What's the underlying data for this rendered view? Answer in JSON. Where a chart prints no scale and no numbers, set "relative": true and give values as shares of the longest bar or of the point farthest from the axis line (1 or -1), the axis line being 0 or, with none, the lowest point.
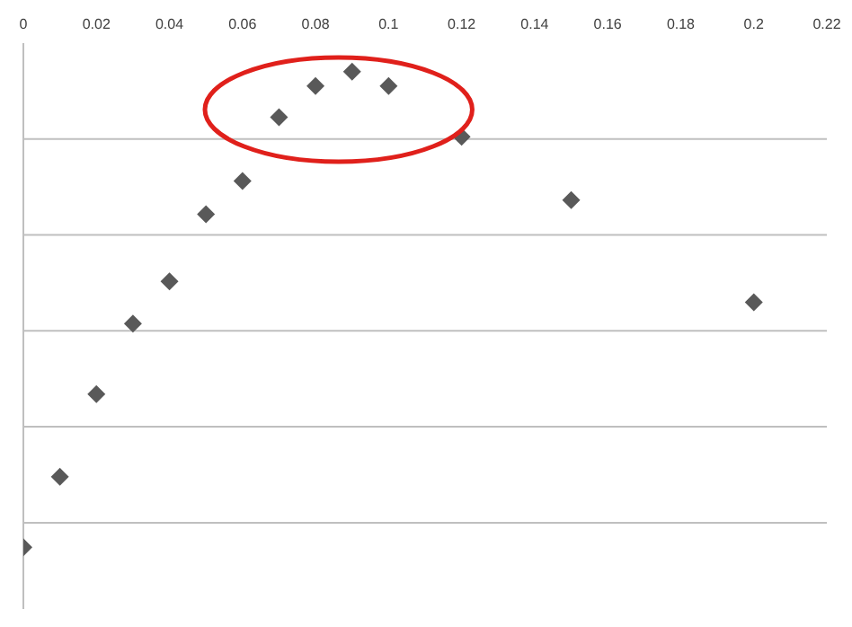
{
  "chart_data": {
    "type": "scatter",
    "relative": true,
    "x": [
      0,
      0.01,
      0.02,
      0.03,
      0.04,
      0.05,
      0.06,
      0.07,
      0.08,
      0.09,
      0.1,
      0.12,
      0.15,
      0.2
    ],
    "series": [
      {
        "color": "#595959",
        "values": [
          0,
          0.148,
          0.322,
          0.47,
          0.559,
          0.7,
          0.77,
          0.904,
          0.97,
          1,
          0.97,
          0.863,
          0.73,
          0.515
        ]
      }
    ],
    "xlim": [
      0,
      0.22
    ],
    "xticks": [
      0,
      0.02,
      0.04,
      0.06,
      0.08,
      0.1,
      0.12,
      0.14,
      0.16,
      0.18,
      0.2,
      0.22
    ],
    "grid": "y",
    "marker": "diamond"
  }
}
